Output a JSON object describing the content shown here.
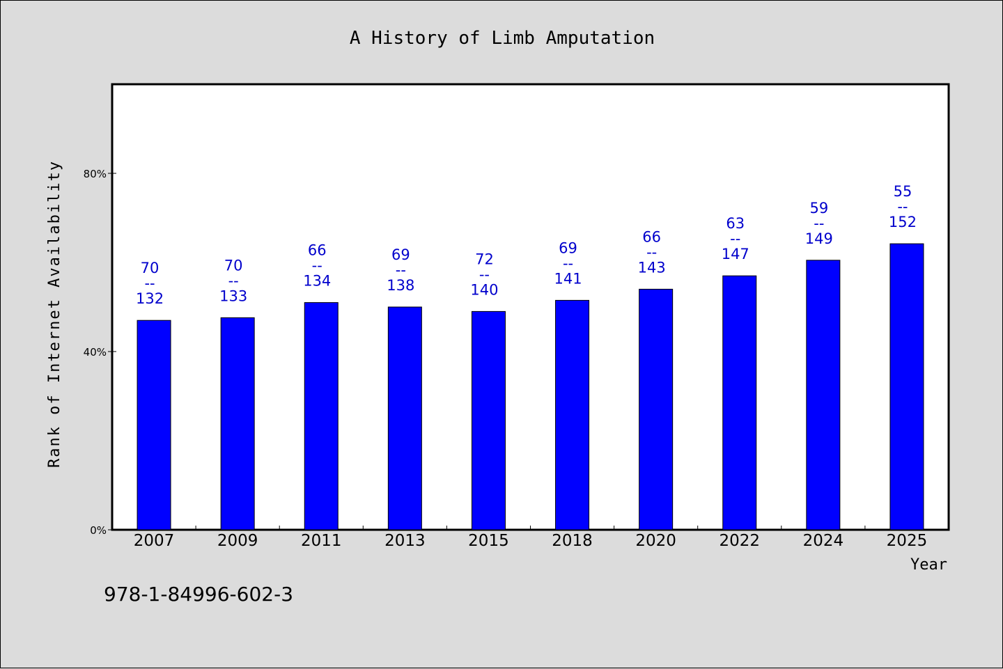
{
  "chart_data": {
    "type": "bar",
    "title": "A History of Limb Amputation",
    "xlabel": "Year",
    "ylabel": "Rank of Internet Availability",
    "categories": [
      "2007",
      "2009",
      "2011",
      "2013",
      "2015",
      "2018",
      "2020",
      "2022",
      "2024",
      "2025"
    ],
    "values": [
      47,
      47.6,
      51,
      50,
      49,
      51.5,
      54,
      57,
      60.5,
      64.2
    ],
    "data_labels": [
      [
        "70",
        "--",
        "132"
      ],
      [
        "70",
        "--",
        "133"
      ],
      [
        "66",
        "--",
        "134"
      ],
      [
        "69",
        "--",
        "138"
      ],
      [
        "72",
        "--",
        "140"
      ],
      [
        "69",
        "--",
        "141"
      ],
      [
        "66",
        "--",
        "143"
      ],
      [
        "63",
        "--",
        "147"
      ],
      [
        "59",
        "--",
        "149"
      ],
      [
        "55",
        "--",
        "152"
      ]
    ],
    "y_ticks": [
      {
        "value": 0,
        "label": "0%"
      },
      {
        "value": 40,
        "label": "40%"
      },
      {
        "value": 80,
        "label": "80%"
      }
    ],
    "ylim": [
      0,
      100
    ],
    "grid": false,
    "legend": "none",
    "bar_color": "#0000ff",
    "label_color": "#0000cc",
    "plot_background": "#ffffff",
    "page_background": "#dcdcdc"
  },
  "footer": "978-1-84996-602-3"
}
